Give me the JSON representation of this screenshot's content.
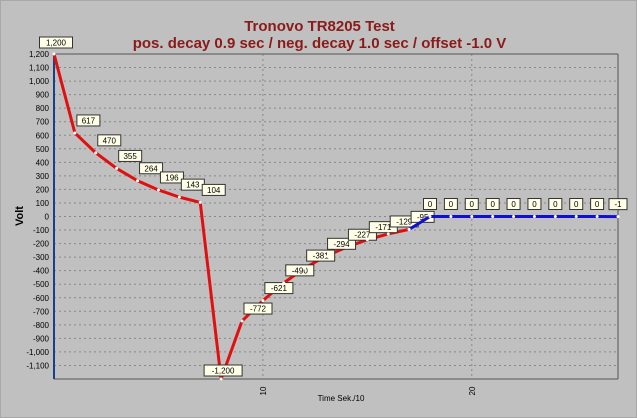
{
  "chart_data": {
    "type": "line",
    "title": "Tronovo TR8205 Test",
    "subtitle": "pos. decay 0.9 sec / neg. decay 1.0 sec / offset -1.0 V",
    "xlabel": "Time Sek./10",
    "ylabel": "Volt",
    "xlim": [
      0,
      27
    ],
    "ylim": [
      -1200,
      1200
    ],
    "x_ticks": [
      10,
      20
    ],
    "y_ticks": [
      1200,
      1100,
      1000,
      900,
      800,
      700,
      600,
      500,
      400,
      300,
      200,
      100,
      0,
      -100,
      -200,
      -300,
      -400,
      -500,
      -600,
      -700,
      -800,
      -900,
      -1000,
      -1100
    ],
    "y_tick_labels": [
      "1,200",
      "1,100",
      "1,000",
      "900",
      "800",
      "700",
      "600",
      "500",
      "400",
      "300",
      "200",
      "100",
      "0",
      "-100",
      "-200",
      "-300",
      "-400",
      "-500",
      "-600",
      "-700",
      "-800",
      "-900",
      "-1,000",
      "-1,100"
    ],
    "grid": true,
    "series": [
      {
        "color": "#e01010",
        "x": [
          0,
          1,
          2,
          3,
          4,
          5,
          6,
          7,
          8,
          9,
          10,
          11,
          12,
          13,
          14,
          15,
          16,
          17
        ],
        "values": [
          1200,
          617,
          470,
          355,
          264,
          196,
          143,
          104,
          -1200,
          -772,
          -621,
          -490,
          -381,
          -294,
          -227,
          -171,
          -129,
          -95
        ],
        "labels": [
          "1,200",
          "617",
          "470",
          "355",
          "264",
          "196",
          "143",
          "104",
          "-1,200",
          "-772",
          "-621",
          "-490",
          "-381",
          "-294",
          "-227",
          "-171",
          "-129",
          "-95"
        ]
      },
      {
        "color": "#1010d0",
        "x": [
          17,
          18,
          19,
          20,
          21,
          22,
          23,
          24,
          25,
          26,
          27
        ],
        "values": [
          -95,
          0,
          0,
          0,
          0,
          0,
          0,
          0,
          0,
          0,
          -1
        ],
        "labels": [
          "",
          "0",
          "0",
          "0",
          "0",
          "0",
          "0",
          "0",
          "0",
          "0",
          "-1"
        ]
      }
    ]
  }
}
